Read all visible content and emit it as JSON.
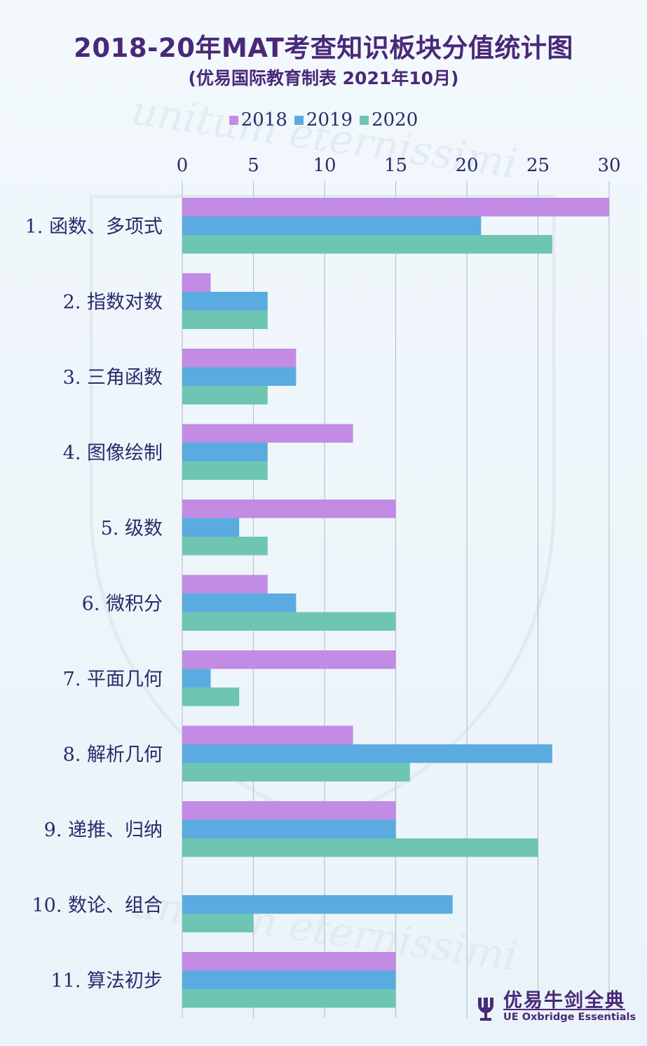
{
  "header": {
    "title": "2018-20年MAT考查知识板块分值统计图",
    "subtitle": "(优易国际教育制表 2021年10月)"
  },
  "logo": {
    "name_cn": "优易牛剑全典",
    "name_en": "UE Oxbridge Essentials"
  },
  "watermark": "unitum eternissimi",
  "colors": {
    "s2018": "#c28be4",
    "s2019": "#5aabdf",
    "s2020": "#6ec5b2",
    "gridline": "#b9c3cc",
    "label": "#2b2b6b"
  },
  "chart_data": {
    "type": "bar",
    "orientation": "horizontal",
    "title": "2018-20年MAT考查知识板块分值统计图",
    "subtitle": "(优易国际教育制表 2021年10月)",
    "xlim": [
      0,
      30
    ],
    "xticks": [
      "0",
      "5",
      "10",
      "15",
      "20",
      "25",
      "30"
    ],
    "xaxis_position": "top",
    "grid": true,
    "legend_position": "top",
    "categories": [
      "1. 函数、多项式",
      "2. 指数对数",
      "3. 三角函数",
      "4. 图像绘制",
      "5. 级数",
      "6. 微积分",
      "7. 平面几何",
      "8. 解析几何",
      "9. 递推、归纳",
      "10. 数论、组合",
      "11. 算法初步"
    ],
    "series": [
      {
        "name": "2018",
        "color": "#c28be4",
        "values": [
          30,
          2,
          8,
          12,
          15,
          6,
          15,
          12,
          15,
          0,
          15
        ]
      },
      {
        "name": "2019",
        "color": "#5aabdf",
        "values": [
          21,
          6,
          8,
          6,
          4,
          8,
          2,
          26,
          15,
          19,
          15
        ]
      },
      {
        "name": "2020",
        "color": "#6ec5b2",
        "values": [
          26,
          6,
          6,
          6,
          6,
          15,
          4,
          16,
          25,
          5,
          15
        ]
      }
    ]
  }
}
